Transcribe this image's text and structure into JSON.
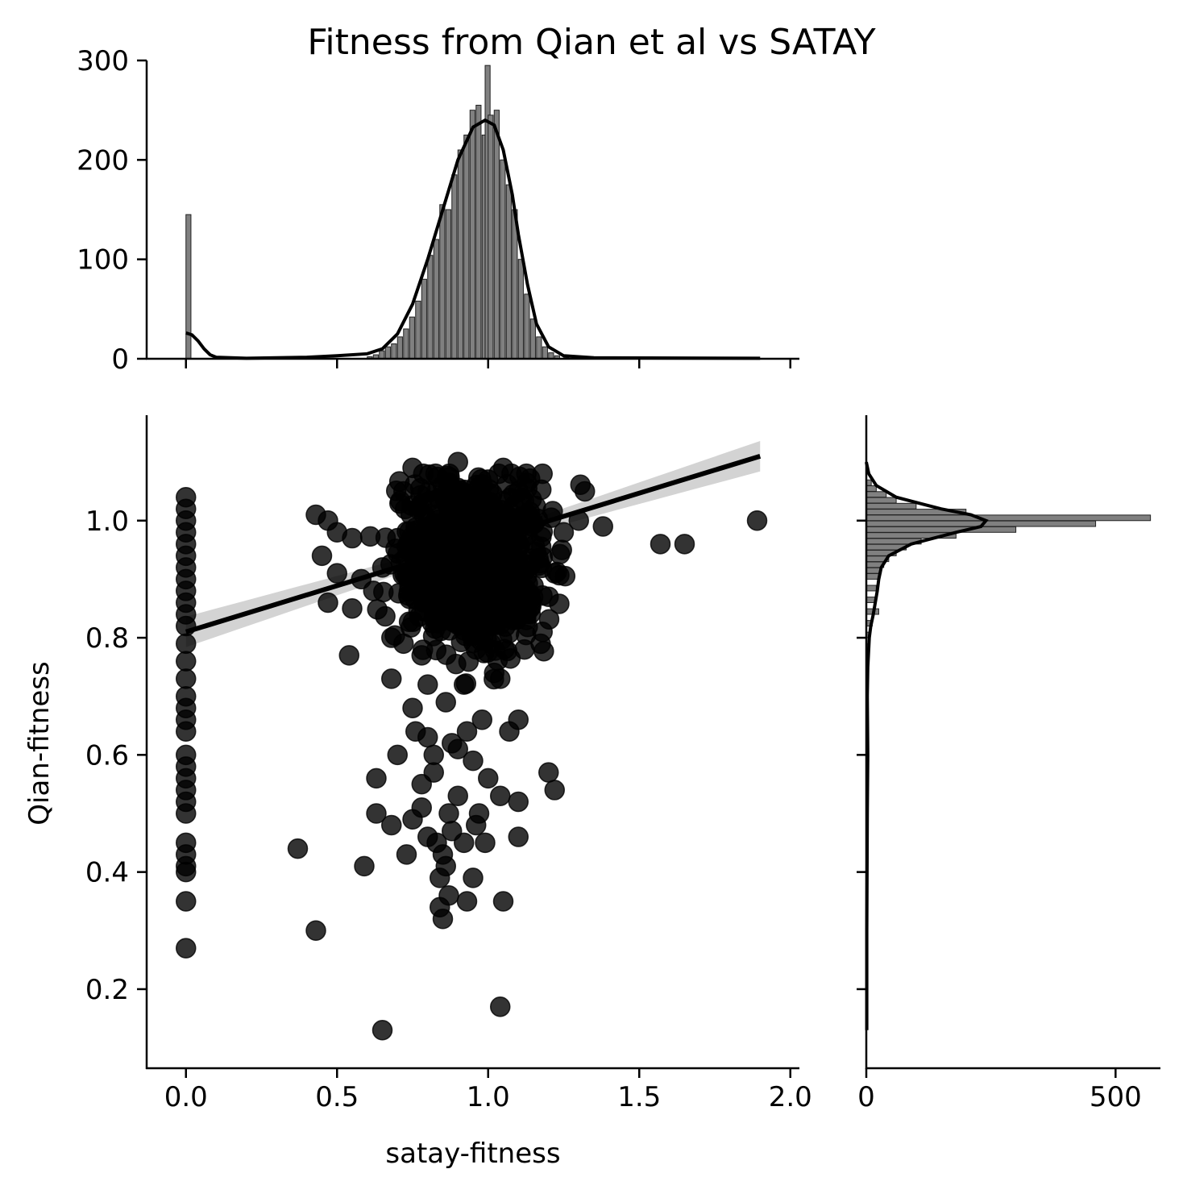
{
  "chart_data": {
    "type": "scatter",
    "title": "Fitness from Qian et al vs SATAY",
    "xlabel": "satay-fitness",
    "ylabel": "Qian-fitness",
    "xlim": [
      -0.13,
      2.03
    ],
    "ylim": [
      0.065,
      1.18
    ],
    "xticks": [
      "0.0",
      "0.5",
      "1.0",
      "1.5",
      "2.0"
    ],
    "yticks": [
      "0.2",
      "0.4",
      "0.6",
      "0.8",
      "1.0"
    ],
    "marker_color": "#000000",
    "marker_alpha": 0.8,
    "regression": {
      "x": [
        0.0,
        1.9
      ],
      "y": [
        0.81,
        1.11
      ],
      "ci_color": "#c8c8c8"
    },
    "cluster_points": [
      [
        0.75,
        1.09
      ],
      [
        0.9,
        1.1
      ],
      [
        1.05,
        1.09
      ],
      [
        1.18,
        1.08
      ],
      [
        0.72,
        1.05
      ],
      [
        1.32,
        1.05
      ],
      [
        1.38,
        0.99
      ],
      [
        1.57,
        0.96
      ],
      [
        1.65,
        0.96
      ],
      [
        1.89,
        1.0
      ],
      [
        0.43,
        1.01
      ],
      [
        0.47,
        1.0
      ],
      [
        0.5,
        0.98
      ],
      [
        0.55,
        0.97
      ],
      [
        0.45,
        0.94
      ],
      [
        0.5,
        0.91
      ],
      [
        0.47,
        0.86
      ],
      [
        0.55,
        0.85
      ],
      [
        0.62,
        0.88
      ],
      [
        0.58,
        0.9
      ],
      [
        0.54,
        0.77
      ],
      [
        0.68,
        0.8
      ],
      [
        0.72,
        0.79
      ],
      [
        0.78,
        0.77
      ],
      [
        1.18,
        0.81
      ],
      [
        1.12,
        0.78
      ],
      [
        1.22,
        0.91
      ],
      [
        1.2,
        0.87
      ],
      [
        1.3,
        1.0
      ],
      [
        1.25,
        0.98
      ],
      [
        0.85,
        1.06
      ],
      [
        1.0,
        1.07
      ],
      [
        1.1,
        1.05
      ],
      [
        0.7,
        0.97
      ],
      [
        0.65,
        0.92
      ],
      [
        0.68,
        0.73
      ],
      [
        0.8,
        0.72
      ],
      [
        0.92,
        0.72
      ],
      [
        1.02,
        0.74
      ],
      [
        1.04,
        0.73
      ],
      [
        0.75,
        0.68
      ],
      [
        0.86,
        0.69
      ],
      [
        0.98,
        0.66
      ],
      [
        1.1,
        0.66
      ],
      [
        0.76,
        0.64
      ],
      [
        0.88,
        0.62
      ],
      [
        0.82,
        0.6
      ],
      [
        0.95,
        0.59
      ],
      [
        0.7,
        0.6
      ],
      [
        1.0,
        0.56
      ],
      [
        0.63,
        0.56
      ],
      [
        0.78,
        0.55
      ],
      [
        0.9,
        0.53
      ],
      [
        1.04,
        0.53
      ],
      [
        0.63,
        0.5
      ],
      [
        0.75,
        0.49
      ],
      [
        0.87,
        0.5
      ],
      [
        0.97,
        0.5
      ],
      [
        1.1,
        0.52
      ],
      [
        0.68,
        0.48
      ],
      [
        0.8,
        0.46
      ],
      [
        0.92,
        0.45
      ],
      [
        1.1,
        0.46
      ],
      [
        0.85,
        0.43
      ],
      [
        0.73,
        0.43
      ],
      [
        0.84,
        0.39
      ],
      [
        0.95,
        0.39
      ],
      [
        0.87,
        0.36
      ],
      [
        0.93,
        0.35
      ],
      [
        1.05,
        0.35
      ],
      [
        0.84,
        0.34
      ],
      [
        0.85,
        0.32
      ],
      [
        0.37,
        0.44
      ],
      [
        0.59,
        0.41
      ],
      [
        0.43,
        0.3
      ],
      [
        0.65,
        0.13
      ],
      [
        1.04,
        0.17
      ],
      [
        1.2,
        0.57
      ],
      [
        1.22,
        0.54
      ],
      [
        0.9,
        0.61
      ],
      [
        0.82,
        0.57
      ],
      [
        0.88,
        0.47
      ],
      [
        0.96,
        0.48
      ],
      [
        0.8,
        0.63
      ],
      [
        0.93,
        0.64
      ],
      [
        0.86,
        0.41
      ],
      [
        0.83,
        0.45
      ],
      [
        0.78,
        0.51
      ],
      [
        0.99,
        0.45
      ],
      [
        1.07,
        0.64
      ]
    ],
    "zero_column_points": [
      1.04,
      1.02,
      1.0,
      0.98,
      0.96,
      0.94,
      0.92,
      0.9,
      0.88,
      0.86,
      0.84,
      0.82,
      0.79,
      0.76,
      0.73,
      0.7,
      0.68,
      0.66,
      0.64,
      0.6,
      0.58,
      0.56,
      0.54,
      0.52,
      0.5,
      0.45,
      0.43,
      0.41,
      0.4,
      0.35,
      0.27
    ],
    "dense_core": {
      "x_center": 0.96,
      "y_center": 0.93,
      "x_spread": 0.12,
      "y_spread": 0.07
    },
    "top_histogram": {
      "ylim": [
        0,
        300
      ],
      "yticks": [
        "0",
        "100",
        "200",
        "300"
      ],
      "bar_color": "#808080",
      "bins": [
        [
          0.0,
          145
        ],
        [
          0.6,
          2
        ],
        [
          0.62,
          4
        ],
        [
          0.64,
          8
        ],
        [
          0.66,
          12
        ],
        [
          0.68,
          15
        ],
        [
          0.7,
          22
        ],
        [
          0.72,
          30
        ],
        [
          0.74,
          42
        ],
        [
          0.76,
          58
        ],
        [
          0.78,
          80
        ],
        [
          0.8,
          104
        ],
        [
          0.82,
          120
        ],
        [
          0.84,
          155
        ],
        [
          0.86,
          150
        ],
        [
          0.88,
          185
        ],
        [
          0.9,
          210
        ],
        [
          0.92,
          225
        ],
        [
          0.94,
          250
        ],
        [
          0.96,
          255
        ],
        [
          0.98,
          225
        ],
        [
          0.99,
          295
        ],
        [
          1.0,
          245
        ],
        [
          1.02,
          250
        ],
        [
          1.04,
          200
        ],
        [
          1.06,
          175
        ],
        [
          1.08,
          150
        ],
        [
          1.1,
          100
        ],
        [
          1.12,
          65
        ],
        [
          1.14,
          40
        ],
        [
          1.16,
          22
        ],
        [
          1.18,
          12
        ],
        [
          1.2,
          6
        ],
        [
          1.22,
          3
        ],
        [
          1.25,
          1
        ]
      ],
      "kde": [
        [
          0.0,
          26
        ],
        [
          0.02,
          24
        ],
        [
          0.04,
          18
        ],
        [
          0.06,
          10
        ],
        [
          0.08,
          4
        ],
        [
          0.1,
          1.5
        ],
        [
          0.2,
          0.5
        ],
        [
          0.4,
          1.5
        ],
        [
          0.5,
          3
        ],
        [
          0.6,
          5
        ],
        [
          0.65,
          10
        ],
        [
          0.7,
          25
        ],
        [
          0.75,
          55
        ],
        [
          0.8,
          100
        ],
        [
          0.85,
          150
        ],
        [
          0.9,
          200
        ],
        [
          0.95,
          233
        ],
        [
          0.99,
          240
        ],
        [
          1.02,
          235
        ],
        [
          1.05,
          210
        ],
        [
          1.08,
          165
        ],
        [
          1.1,
          125
        ],
        [
          1.13,
          75
        ],
        [
          1.16,
          35
        ],
        [
          1.2,
          12
        ],
        [
          1.25,
          3
        ],
        [
          1.35,
          1
        ],
        [
          1.9,
          0.5
        ]
      ]
    },
    "right_histogram": {
      "xlim": [
        0,
        590
      ],
      "xticks": [
        "0",
        "500"
      ],
      "bar_color": "#808080",
      "bins": [
        [
          1.06,
          10
        ],
        [
          1.05,
          20
        ],
        [
          1.04,
          40
        ],
        [
          1.03,
          60
        ],
        [
          1.02,
          100
        ],
        [
          1.01,
          200
        ],
        [
          1.0,
          570
        ],
        [
          0.99,
          460
        ],
        [
          0.98,
          300
        ],
        [
          0.97,
          180
        ],
        [
          0.96,
          110
        ],
        [
          0.95,
          80
        ],
        [
          0.94,
          60
        ],
        [
          0.93,
          45
        ],
        [
          0.92,
          35
        ],
        [
          0.91,
          30
        ],
        [
          0.9,
          25
        ],
        [
          0.88,
          20
        ],
        [
          0.86,
          18
        ],
        [
          0.84,
          25
        ],
        [
          0.82,
          12
        ],
        [
          0.8,
          6
        ],
        [
          0.78,
          4
        ],
        [
          0.76,
          3
        ]
      ],
      "kde": [
        [
          1.1,
          0
        ],
        [
          1.08,
          5
        ],
        [
          1.06,
          20
        ],
        [
          1.04,
          60
        ],
        [
          1.02,
          150
        ],
        [
          1.01,
          210
        ],
        [
          1.0,
          240
        ],
        [
          0.99,
          230
        ],
        [
          0.98,
          180
        ],
        [
          0.96,
          90
        ],
        [
          0.94,
          45
        ],
        [
          0.92,
          30
        ],
        [
          0.9,
          25
        ],
        [
          0.88,
          22
        ],
        [
          0.86,
          18
        ],
        [
          0.84,
          14
        ],
        [
          0.82,
          9
        ],
        [
          0.8,
          6
        ],
        [
          0.75,
          3
        ],
        [
          0.7,
          2
        ],
        [
          0.6,
          3
        ],
        [
          0.5,
          2
        ],
        [
          0.4,
          1.5
        ],
        [
          0.3,
          1
        ],
        [
          0.2,
          1
        ],
        [
          0.13,
          1
        ]
      ]
    }
  }
}
